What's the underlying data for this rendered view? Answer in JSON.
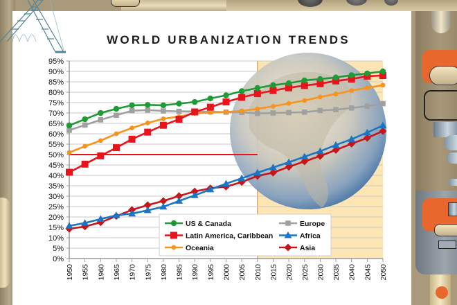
{
  "chart_data": {
    "type": "line",
    "title": "WORLD URBANIZATION TRENDS",
    "xlabel": "",
    "ylabel": "",
    "x": [
      1950,
      1955,
      1960,
      1965,
      1970,
      1975,
      1980,
      1985,
      1990,
      1995,
      2000,
      2005,
      2010,
      2015,
      2020,
      2025,
      2030,
      2035,
      2040,
      2045,
      2050
    ],
    "x_tick_labels": [
      "1950",
      "1955",
      "1960",
      "1965",
      "1970",
      "1975",
      "1980",
      "1985",
      "1990",
      "1995",
      "2000",
      "2005",
      "2010",
      "2015",
      "2020",
      "2025",
      "2030",
      "2035",
      "2040",
      "2045",
      "2050"
    ],
    "ylim": [
      0,
      95
    ],
    "y_ticks": [
      0,
      5,
      10,
      15,
      20,
      25,
      30,
      35,
      40,
      45,
      50,
      55,
      60,
      65,
      70,
      75,
      80,
      85,
      90,
      95
    ],
    "y_tick_labels": [
      "0%",
      "5%",
      "10%",
      "15%",
      "20%",
      "25%",
      "30%",
      "35%",
      "40%",
      "45%",
      "50%",
      "55%",
      "60%",
      "65%",
      "70%",
      "75%",
      "80%",
      "85%",
      "90%",
      "95%"
    ],
    "grid": true,
    "projection_region": {
      "from": 2010,
      "to": 2050,
      "color": "#fde6b4"
    },
    "reference_line": {
      "value": 50,
      "from": 1950,
      "to": 2010,
      "color": "#e8141c"
    },
    "series": [
      {
        "name": "US & Canada",
        "color": "#1e9a36",
        "marker": "circle",
        "values": [
          64,
          67,
          70,
          72,
          73.7,
          73.9,
          73.7,
          74.5,
          75.3,
          77,
          78.5,
          80.5,
          82,
          83.4,
          84.3,
          85.7,
          86.3,
          87.1,
          88.2,
          89,
          90
        ]
      },
      {
        "name": "Latin America, Caribbean",
        "color": "#e8141c",
        "marker": "square",
        "values": [
          41.5,
          45.4,
          49.4,
          53.3,
          57.4,
          60.8,
          64.1,
          67,
          70.5,
          72.8,
          75.3,
          77.5,
          79.3,
          80.8,
          82.1,
          83.2,
          84.1,
          85.4,
          86.3,
          87.7,
          88
        ]
      },
      {
        "name": "Oceania",
        "color": "#f7931e",
        "marker": "circle-small",
        "values": [
          51,
          54,
          56.7,
          60,
          62.8,
          65.2,
          67.2,
          68.3,
          69.8,
          70.2,
          70.5,
          71,
          72,
          73.2,
          74.6,
          76,
          77.7,
          79.1,
          80.8,
          82.1,
          83.4
        ]
      },
      {
        "name": "Europe",
        "color": "#a0a0a0",
        "marker": "square-small",
        "values": [
          61.7,
          64.2,
          66.7,
          68.9,
          71.1,
          71.4,
          71,
          70.8,
          70.7,
          70.6,
          70.4,
          70.3,
          69.8,
          70,
          70.2,
          70.4,
          71.2,
          71.6,
          72.4,
          73.3,
          74.5
        ]
      },
      {
        "name": "Africa",
        "color": "#1b75c4",
        "marker": "triangle",
        "values": [
          15.7,
          17.1,
          19,
          20.8,
          21.6,
          23.2,
          24.9,
          27.7,
          30.4,
          33.2,
          36,
          38.6,
          41.3,
          43.8,
          46.3,
          49,
          51.6,
          54.6,
          57.4,
          60.6,
          64
        ]
      },
      {
        "name": "Asia",
        "color": "#c4161c",
        "marker": "diamond",
        "values": [
          14.3,
          15.4,
          17.4,
          20.4,
          23.4,
          25.7,
          27.7,
          30.1,
          32.3,
          33.8,
          34.6,
          36.8,
          39.7,
          41.3,
          44.1,
          46.7,
          49.3,
          52.2,
          55.2,
          58,
          61.3
        ]
      }
    ],
    "legend": {
      "placement": "bottom-center",
      "columns": [
        [
          "US & Canada",
          "Latin America, Caribbean",
          "Oceania"
        ],
        [
          "Europe",
          "Africa",
          "Asia"
        ]
      ]
    }
  },
  "decor": {
    "globe": "earth-globe-illustration",
    "frame": "industrial-machinery-border"
  }
}
